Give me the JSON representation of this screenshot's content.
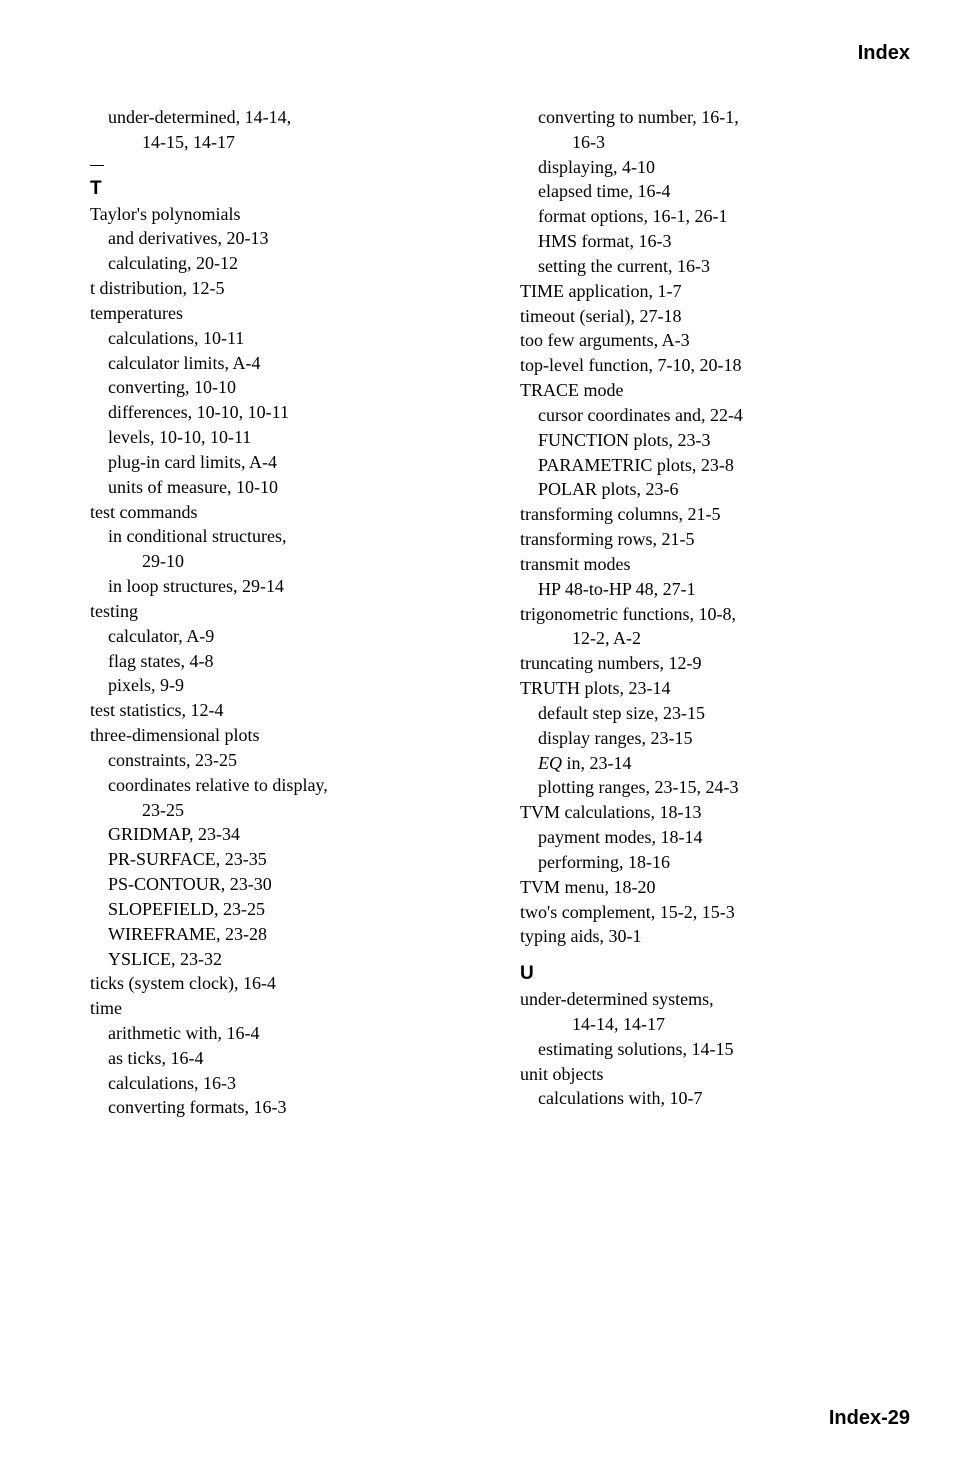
{
  "header": "Index",
  "footer": "Index-29",
  "col1": [
    {
      "l": 1,
      "t": "under-determined, 14-14,"
    },
    {
      "l": 2,
      "t": "14-15, 14-17"
    },
    {
      "section": "T"
    },
    {
      "l": 0,
      "t": "Taylor's polynomials"
    },
    {
      "l": 1,
      "t": "and derivatives, 20-13"
    },
    {
      "l": 1,
      "t": "calculating, 20-12"
    },
    {
      "l": 0,
      "t": "t distribution, 12-5"
    },
    {
      "l": 0,
      "t": "temperatures"
    },
    {
      "l": 1,
      "t": "calculations, 10-11"
    },
    {
      "l": 1,
      "t": "calculator limits, A-4"
    },
    {
      "l": 1,
      "t": "converting, 10-10"
    },
    {
      "l": 1,
      "t": "differences, 10-10, 10-11"
    },
    {
      "l": 1,
      "t": "levels, 10-10, 10-11"
    },
    {
      "l": 1,
      "t": "plug-in card limits, A-4"
    },
    {
      "l": 1,
      "t": "units of measure, 10-10"
    },
    {
      "l": 0,
      "t": "test commands"
    },
    {
      "l": 1,
      "t": "in conditional structures,"
    },
    {
      "l": 2,
      "t": "29-10"
    },
    {
      "l": 1,
      "t": "in loop structures, 29-14"
    },
    {
      "l": 0,
      "t": "testing"
    },
    {
      "l": 1,
      "t": "calculator, A-9"
    },
    {
      "l": 1,
      "t": "flag states, 4-8"
    },
    {
      "l": 1,
      "t": "pixels, 9-9"
    },
    {
      "l": 0,
      "t": "test statistics, 12-4"
    },
    {
      "l": 0,
      "t": "three-dimensional plots"
    },
    {
      "l": 1,
      "t": "constraints, 23-25"
    },
    {
      "l": 1,
      "t": "coordinates relative to display,"
    },
    {
      "l": 2,
      "t": "23-25"
    },
    {
      "l": 1,
      "t": "GRIDMAP, 23-34"
    },
    {
      "l": 1,
      "t": "PR-SURFACE, 23-35"
    },
    {
      "l": 1,
      "t": "PS-CONTOUR, 23-30"
    },
    {
      "l": 1,
      "t": "SLOPEFIELD, 23-25"
    },
    {
      "l": 1,
      "t": "WIREFRAME, 23-28"
    },
    {
      "l": 1,
      "t": "YSLICE, 23-32"
    },
    {
      "l": 0,
      "t": "ticks (system clock), 16-4"
    },
    {
      "l": 0,
      "t": "time"
    },
    {
      "l": 1,
      "t": "arithmetic with, 16-4"
    },
    {
      "l": 1,
      "t": "as ticks, 16-4"
    },
    {
      "l": 1,
      "t": "calculations, 16-3"
    },
    {
      "l": 1,
      "t": "converting formats, 16-3"
    }
  ],
  "col2": [
    {
      "l": 1,
      "t": "converting to number, 16-1,"
    },
    {
      "l": 2,
      "t": "16-3"
    },
    {
      "l": 1,
      "t": "displaying, 4-10"
    },
    {
      "l": 1,
      "t": "elapsed time, 16-4"
    },
    {
      "l": 1,
      "t": "format options, 16-1, 26-1"
    },
    {
      "l": 1,
      "t": "HMS format, 16-3"
    },
    {
      "l": 1,
      "t": "setting the current, 16-3"
    },
    {
      "l": 0,
      "t": "TIME application, 1-7"
    },
    {
      "l": 0,
      "t": "timeout (serial), 27-18"
    },
    {
      "l": 0,
      "t": "too few arguments, A-3"
    },
    {
      "l": 0,
      "t": "top-level function, 7-10, 20-18"
    },
    {
      "l": 0,
      "t": "TRACE mode"
    },
    {
      "l": 1,
      "t": "cursor coordinates and, 22-4"
    },
    {
      "l": 1,
      "t": "FUNCTION plots, 23-3"
    },
    {
      "l": 1,
      "t": "PARAMETRIC plots, 23-8"
    },
    {
      "l": 1,
      "t": "POLAR plots, 23-6"
    },
    {
      "l": 0,
      "t": "transforming columns, 21-5"
    },
    {
      "l": 0,
      "t": "transforming rows, 21-5"
    },
    {
      "l": 0,
      "t": "transmit modes"
    },
    {
      "l": 1,
      "t": "HP 48-to-HP 48, 27-1"
    },
    {
      "l": 0,
      "t": "trigonometric functions, 10-8,"
    },
    {
      "l": 2,
      "t": "12-2, A-2"
    },
    {
      "l": 0,
      "t": "truncating numbers, 12-9"
    },
    {
      "l": 0,
      "t": "TRUTH plots, 23-14"
    },
    {
      "l": 1,
      "t": "default step size, 23-15"
    },
    {
      "l": 1,
      "t": "display ranges, 23-15"
    },
    {
      "l": 1,
      "html": "<span class='ital'>EQ</span> in, 23-14"
    },
    {
      "l": 1,
      "t": "plotting ranges, 23-15, 24-3"
    },
    {
      "l": 0,
      "t": "TVM calculations, 18-13"
    },
    {
      "l": 1,
      "t": "payment modes, 18-14"
    },
    {
      "l": 1,
      "t": "performing, 18-16"
    },
    {
      "l": 0,
      "t": "TVM menu, 18-20"
    },
    {
      "l": 0,
      "t": "two's complement, 15-2, 15-3"
    },
    {
      "l": 0,
      "t": "typing aids, 30-1"
    },
    {
      "section": "U"
    },
    {
      "l": 0,
      "t": "under-determined systems,"
    },
    {
      "l": 2,
      "t": "14-14, 14-17"
    },
    {
      "l": 1,
      "t": "estimating solutions, 14-15"
    },
    {
      "l": 0,
      "t": "unit objects"
    },
    {
      "l": 1,
      "t": "calculations with, 10-7"
    }
  ]
}
